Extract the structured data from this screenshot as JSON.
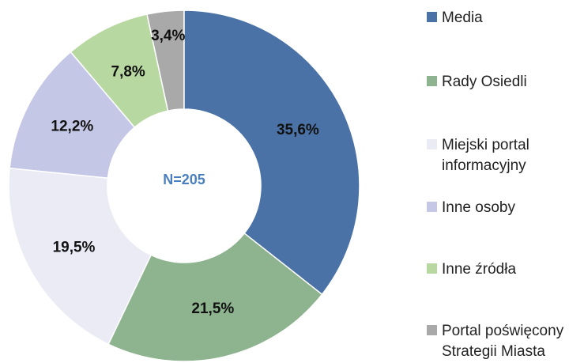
{
  "chart_data": {
    "type": "donut",
    "annotation": "N=205",
    "series": [
      {
        "name": "Media",
        "color": "#4a72a6",
        "values": [
          35.6
        ],
        "value_labels": [
          "35,6%"
        ]
      },
      {
        "name": "Rady Osiedli",
        "color": "#8eb38f",
        "values": [
          21.5
        ],
        "value_labels": [
          "21,5%"
        ]
      },
      {
        "name": "Miejski portal informacyjny",
        "color": "#ebebf6",
        "values": [
          19.5
        ],
        "value_labels": [
          "19,5%"
        ]
      },
      {
        "name": "Inne osoby",
        "color": "#c4c7e6",
        "values": [
          12.2
        ],
        "value_labels": [
          "12,2%"
        ]
      },
      {
        "name": "Inne źródła",
        "color": "#b8d8a1",
        "values": [
          7.8
        ],
        "value_labels": [
          "7,8%"
        ]
      },
      {
        "name": "Portal poświęcony Strategii Miasta",
        "color": "#a9a9a9",
        "values": [
          3.4
        ],
        "value_labels": [
          "3,4%"
        ]
      }
    ]
  }
}
